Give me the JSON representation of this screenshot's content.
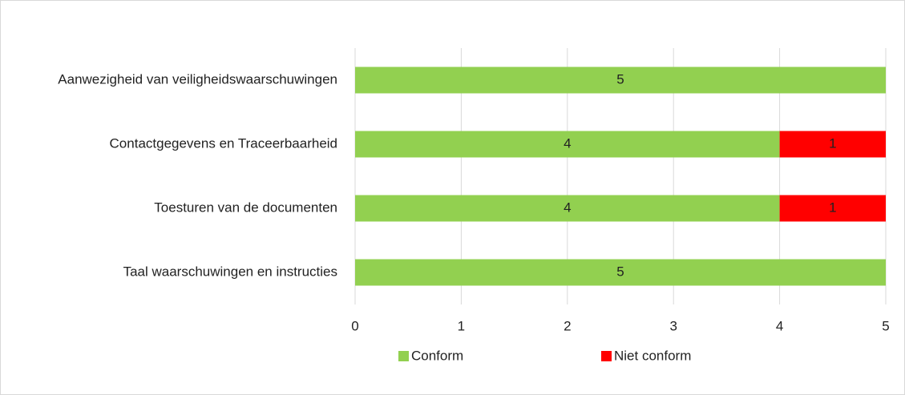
{
  "chart_data": {
    "type": "bar",
    "orientation": "horizontal",
    "stacked": true,
    "categories": [
      "Aanwezigheid van veiligheidswaarschuwingen",
      "Contactgegevens en Traceerbaarheid",
      "Toesturen van de documenten",
      "Taal waarschuwingen en instructies"
    ],
    "series": [
      {
        "name": "Conform",
        "color": "#92d050",
        "values": [
          5,
          4,
          4,
          5
        ]
      },
      {
        "name": "Niet conform",
        "color": "#ff0000",
        "values": [
          null,
          1,
          1,
          null
        ]
      }
    ],
    "xlim": [
      0,
      5
    ],
    "xticks": [
      0,
      1,
      2,
      3,
      4,
      5
    ],
    "grid": true,
    "legend": "bottom"
  }
}
